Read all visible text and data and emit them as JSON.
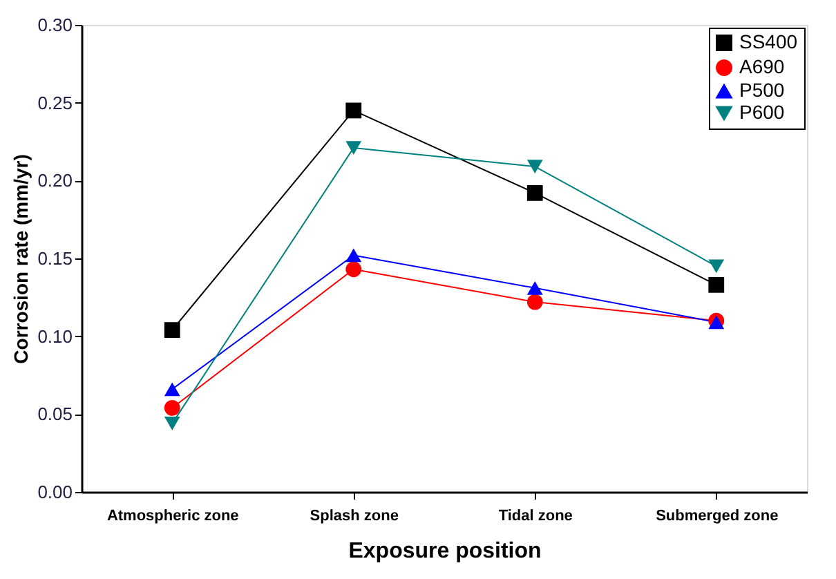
{
  "chart_data": {
    "type": "line",
    "xlabel": "Exposure position",
    "ylabel": "Corrosion rate (mm/yr)",
    "categories": [
      "Atmospheric zone",
      "Splash zone",
      "Tidal zone",
      "Submerged zone"
    ],
    "series": [
      {
        "name": "SS400",
        "color": "#000000",
        "marker": "square",
        "values": [
          0.104,
          0.245,
          0.192,
          0.133
        ]
      },
      {
        "name": "A690",
        "color": "#ff0000",
        "marker": "circle",
        "values": [
          0.054,
          0.143,
          0.122,
          0.11
        ]
      },
      {
        "name": "P500",
        "color": "#0000ff",
        "marker": "triangle",
        "values": [
          0.066,
          0.152,
          0.131,
          0.109
        ]
      },
      {
        "name": "P600",
        "color": "#008080",
        "marker": "triangle-down",
        "values": [
          0.044,
          0.221,
          0.209,
          0.145
        ]
      }
    ],
    "ylim": [
      0,
      0.3
    ],
    "yticks": [
      {
        "value": 0,
        "label": "0.00"
      },
      {
        "value": 0.05,
        "label": "0.05"
      },
      {
        "value": 0.1,
        "label": "0.10"
      },
      {
        "value": 0.15,
        "label": "0.15"
      },
      {
        "value": 0.2,
        "label": "0.20"
      },
      {
        "value": 0.25,
        "label": "0.25"
      },
      {
        "value": 0.3,
        "label": "0.30"
      }
    ],
    "grid": false,
    "legend": "top right",
    "line_style": "solid"
  }
}
